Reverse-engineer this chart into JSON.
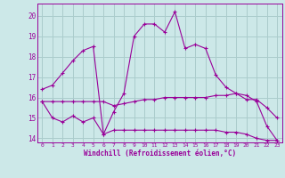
{
  "xlabel": "Windchill (Refroidissement éolien,°C)",
  "background_color": "#cce8e8",
  "grid_color": "#aacccc",
  "line_color": "#990099",
  "xlim": [
    -0.5,
    23.5
  ],
  "ylim": [
    13.8,
    20.6
  ],
  "yticks": [
    14,
    15,
    16,
    17,
    18,
    19,
    20
  ],
  "xticks": [
    0,
    1,
    2,
    3,
    4,
    5,
    6,
    7,
    8,
    9,
    10,
    11,
    12,
    13,
    14,
    15,
    16,
    17,
    18,
    19,
    20,
    21,
    22,
    23
  ],
  "series": [
    {
      "x": [
        0,
        1,
        2,
        3,
        4,
        5,
        6,
        7,
        8,
        9,
        10,
        11,
        12,
        13,
        14,
        15,
        16,
        17,
        18,
        19,
        20,
        21,
        22,
        23
      ],
      "y": [
        16.4,
        16.6,
        17.2,
        17.8,
        18.3,
        18.5,
        14.2,
        15.3,
        16.2,
        19.0,
        19.6,
        19.6,
        19.2,
        20.2,
        18.4,
        18.6,
        18.4,
        17.1,
        16.5,
        16.2,
        16.1,
        15.8,
        14.6,
        13.9
      ]
    },
    {
      "x": [
        0,
        1,
        2,
        3,
        4,
        5,
        6,
        7,
        8,
        9,
        10,
        11,
        12,
        13,
        14,
        15,
        16,
        17,
        18,
        19,
        20,
        21,
        22,
        23
      ],
      "y": [
        15.8,
        15.8,
        15.8,
        15.8,
        15.8,
        15.8,
        15.8,
        15.6,
        15.7,
        15.8,
        15.9,
        15.9,
        16.0,
        16.0,
        16.0,
        16.0,
        16.0,
        16.1,
        16.1,
        16.2,
        15.9,
        15.9,
        15.5,
        15.0
      ]
    },
    {
      "x": [
        0,
        1,
        2,
        3,
        4,
        5,
        6,
        7,
        8,
        9,
        10,
        11,
        12,
        13,
        14,
        15,
        16,
        17,
        18,
        19,
        20,
        21,
        22,
        23
      ],
      "y": [
        15.8,
        15.0,
        14.8,
        15.1,
        14.8,
        15.0,
        14.2,
        14.4,
        14.4,
        14.4,
        14.4,
        14.4,
        14.4,
        14.4,
        14.4,
        14.4,
        14.4,
        14.4,
        14.3,
        14.3,
        14.2,
        14.0,
        13.9,
        13.9
      ]
    }
  ]
}
